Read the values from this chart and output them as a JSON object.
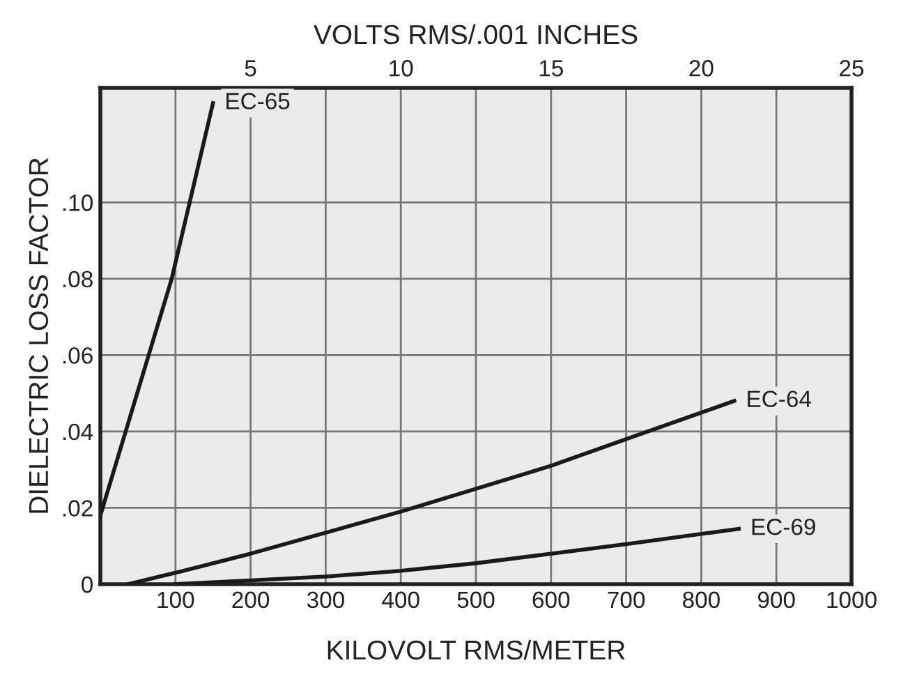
{
  "chart_data": {
    "type": "line",
    "xlabel": "KILOVOLT RMS/METER",
    "ylabel": "DIELECTRIC LOSS FACTOR",
    "x2label": "VOLTS RMS/.001 INCHES",
    "xlim": [
      0,
      1000
    ],
    "xticks": [
      100,
      200,
      300,
      400,
      500,
      600,
      700,
      800,
      900,
      1000
    ],
    "x2lim": [
      0,
      25
    ],
    "x2ticks": [
      5,
      10,
      15,
      20,
      25
    ],
    "ylim": [
      0,
      0.13
    ],
    "yticks": [
      {
        "value": 0,
        "label": "0"
      },
      {
        "value": 0.02,
        "label": ".02"
      },
      {
        "value": 0.04,
        "label": ".04"
      },
      {
        "value": 0.06,
        "label": ".06"
      },
      {
        "value": 0.08,
        "label": ".08"
      },
      {
        "value": 0.1,
        "label": ".10"
      }
    ],
    "grid": true,
    "legend": false,
    "marker": "none",
    "line_style": "solid",
    "series": [
      {
        "name": "EC-65",
        "color": "#1a1a1a",
        "x": [
          0,
          95,
          150
        ],
        "values": [
          0.018,
          0.08,
          0.126
        ]
      },
      {
        "name": "EC-64",
        "color": "#1a1a1a",
        "x": [
          37,
          100,
          200,
          300,
          400,
          500,
          600,
          700,
          844
        ],
        "values": [
          0,
          0.003,
          0.008,
          0.0135,
          0.019,
          0.025,
          0.031,
          0.038,
          0.048
        ]
      },
      {
        "name": "EC-69",
        "color": "#1a1a1a",
        "x": [
          100,
          200,
          300,
          400,
          500,
          600,
          700,
          850
        ],
        "values": [
          0,
          0.001,
          0.002,
          0.0035,
          0.0055,
          0.008,
          0.0105,
          0.0145
        ]
      }
    ]
  }
}
